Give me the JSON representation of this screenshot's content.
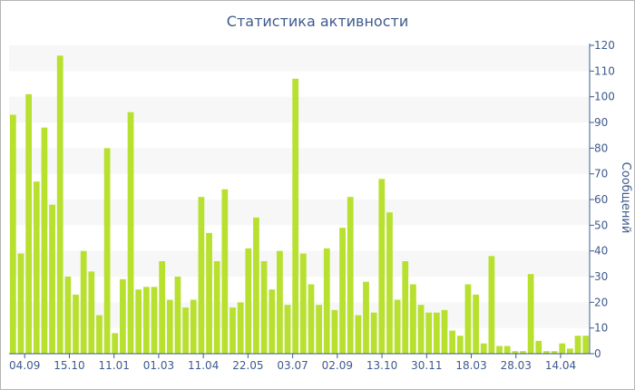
{
  "chart_data": {
    "type": "bar",
    "title": "Статистика активности",
    "xlabel": "",
    "ylabel": "Сообщений",
    "ylim": [
      0,
      120
    ],
    "yticks": [
      0,
      10,
      20,
      30,
      40,
      50,
      60,
      70,
      80,
      90,
      100,
      110,
      120
    ],
    "y_axis_side": "right",
    "grid": "horizontal alternating bands",
    "colors": {
      "bar": "#b7e02f",
      "axis": "#3e5a8c",
      "band": "#f7f7f7"
    },
    "xtick_labels": [
      "04.09",
      "15.10",
      "11.01",
      "01.03",
      "11.04",
      "22.05",
      "03.07",
      "02.09",
      "13.10",
      "30.11",
      "18.03",
      "28.03",
      "14.04"
    ],
    "values": [
      93,
      39,
      101,
      67,
      88,
      58,
      116,
      30,
      23,
      40,
      32,
      15,
      80,
      8,
      29,
      94,
      25,
      26,
      26,
      36,
      21,
      30,
      18,
      21,
      61,
      47,
      36,
      64,
      18,
      20,
      41,
      53,
      36,
      25,
      40,
      19,
      107,
      39,
      27,
      19,
      41,
      17,
      49,
      61,
      15,
      28,
      16,
      68,
      55,
      21,
      36,
      27,
      19,
      16,
      16,
      17,
      9,
      7,
      27,
      23,
      4,
      38,
      3,
      3,
      1,
      1,
      31,
      5,
      1,
      1,
      4,
      2,
      7,
      7
    ]
  }
}
